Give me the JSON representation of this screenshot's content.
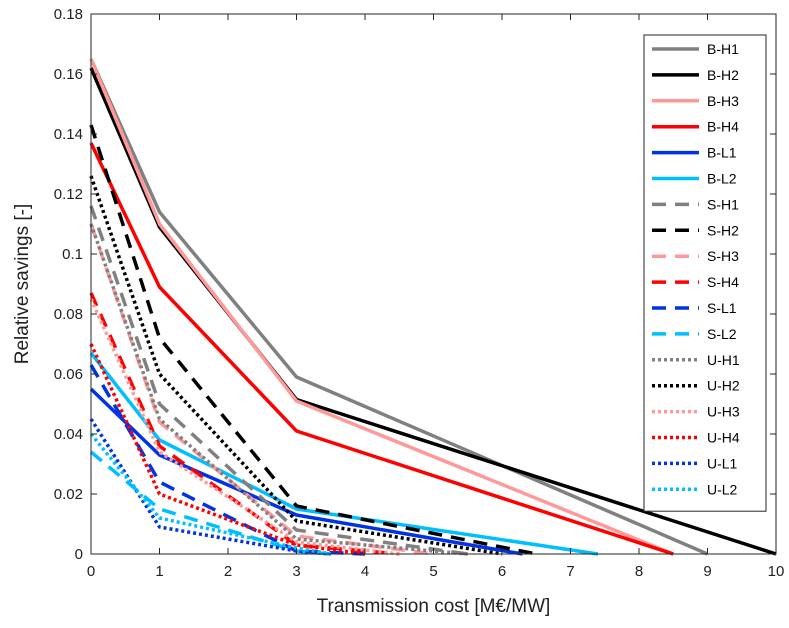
{
  "chart_data": {
    "type": "line",
    "xlabel": "Transmission cost [M€/MW]",
    "ylabel": "Relative savings [-]",
    "xlim": [
      0,
      10
    ],
    "ylim": [
      0,
      0.18
    ],
    "xticks": [
      0,
      1,
      2,
      3,
      4,
      5,
      6,
      7,
      8,
      9,
      10
    ],
    "yticks": [
      0,
      0.02,
      0.04,
      0.06,
      0.08,
      0.1,
      0.12,
      0.14,
      0.16,
      0.18
    ],
    "xtick_labels": [
      "0",
      "1",
      "2",
      "3",
      "4",
      "5",
      "6",
      "7",
      "8",
      "9",
      "10"
    ],
    "ytick_labels": [
      "0",
      "0.02",
      "0.04",
      "0.06",
      "0.08",
      "0.1",
      "0.12",
      "0.14",
      "0.16",
      "0.18"
    ],
    "grid": false,
    "legend_position": "top-right",
    "colors": {
      "gray": "#808080",
      "black": "#000000",
      "pink": "#ff9999",
      "red": "#ff0000",
      "blue": "#0033e6",
      "cyan": "#00bfff"
    },
    "series": [
      {
        "name": "B-H1",
        "color": "#808080",
        "style": "solid",
        "x": [
          0,
          1,
          3,
          9
        ],
        "y": [
          0.165,
          0.114,
          0.059,
          0
        ]
      },
      {
        "name": "B-H2",
        "color": "#000000",
        "style": "solid",
        "x": [
          0,
          1,
          3,
          10
        ],
        "y": [
          0.162,
          0.109,
          0.0515,
          0
        ]
      },
      {
        "name": "B-H3",
        "color": "#ff9999",
        "style": "solid",
        "x": [
          0,
          1,
          3,
          8.5
        ],
        "y": [
          0.165,
          0.11,
          0.051,
          0
        ]
      },
      {
        "name": "B-H4",
        "color": "#ff0000",
        "style": "solid",
        "x": [
          0,
          1,
          3,
          8.5
        ],
        "y": [
          0.137,
          0.089,
          0.041,
          0
        ]
      },
      {
        "name": "B-L1",
        "color": "#0033e6",
        "style": "solid",
        "x": [
          0,
          1,
          3,
          6.3
        ],
        "y": [
          0.055,
          0.033,
          0.013,
          0
        ]
      },
      {
        "name": "B-L2",
        "color": "#00bfff",
        "style": "solid",
        "x": [
          0,
          1,
          3,
          7.4
        ],
        "y": [
          0.067,
          0.038,
          0.015,
          0
        ]
      },
      {
        "name": "S-H1",
        "color": "#808080",
        "style": "dashed",
        "x": [
          0,
          1,
          3,
          5.5
        ],
        "y": [
          0.116,
          0.05,
          0.008,
          0
        ]
      },
      {
        "name": "S-H2",
        "color": "#000000",
        "style": "dashed",
        "x": [
          0,
          1,
          3,
          6.5
        ],
        "y": [
          0.143,
          0.072,
          0.016,
          0
        ]
      },
      {
        "name": "S-H3",
        "color": "#ff9999",
        "style": "dashed",
        "x": [
          0,
          1,
          3,
          5
        ],
        "y": [
          0.11,
          0.044,
          0.006,
          0
        ]
      },
      {
        "name": "S-H4",
        "color": "#ff0000",
        "style": "dashed",
        "x": [
          0,
          1,
          3,
          4.5
        ],
        "y": [
          0.087,
          0.036,
          0.003,
          0
        ]
      },
      {
        "name": "S-L1",
        "color": "#0033e6",
        "style": "dashed",
        "x": [
          0,
          1,
          3,
          4
        ],
        "y": [
          0.063,
          0.024,
          0.001,
          0
        ]
      },
      {
        "name": "S-L2",
        "color": "#00bfff",
        "style": "dashed",
        "x": [
          0,
          1,
          3,
          3.5
        ],
        "y": [
          0.034,
          0.015,
          0.001,
          0
        ]
      },
      {
        "name": "U-H1",
        "color": "#808080",
        "style": "dotted",
        "x": [
          0,
          1,
          3,
          5.5
        ],
        "y": [
          0.11,
          0.045,
          0.005,
          0
        ]
      },
      {
        "name": "U-H2",
        "color": "#000000",
        "style": "dotted",
        "x": [
          0,
          1,
          3,
          6
        ],
        "y": [
          0.126,
          0.06,
          0.011,
          0
        ]
      },
      {
        "name": "U-H3",
        "color": "#ff9999",
        "style": "dotted",
        "x": [
          0,
          1,
          3,
          4.5
        ],
        "y": [
          0.085,
          0.034,
          0.004,
          0
        ]
      },
      {
        "name": "U-H4",
        "color": "#ff0000",
        "style": "dotted",
        "x": [
          0,
          1,
          3,
          4
        ],
        "y": [
          0.07,
          0.02,
          0.003,
          0
        ]
      },
      {
        "name": "U-L1",
        "color": "#0033e6",
        "style": "dotted",
        "x": [
          0,
          1,
          3,
          3.5
        ],
        "y": [
          0.045,
          0.009,
          0.001,
          0
        ]
      },
      {
        "name": "U-L2",
        "color": "#00bfff",
        "style": "dotted",
        "x": [
          0,
          1,
          3,
          3.5
        ],
        "y": [
          0.04,
          0.012,
          0.002,
          0
        ]
      }
    ]
  }
}
